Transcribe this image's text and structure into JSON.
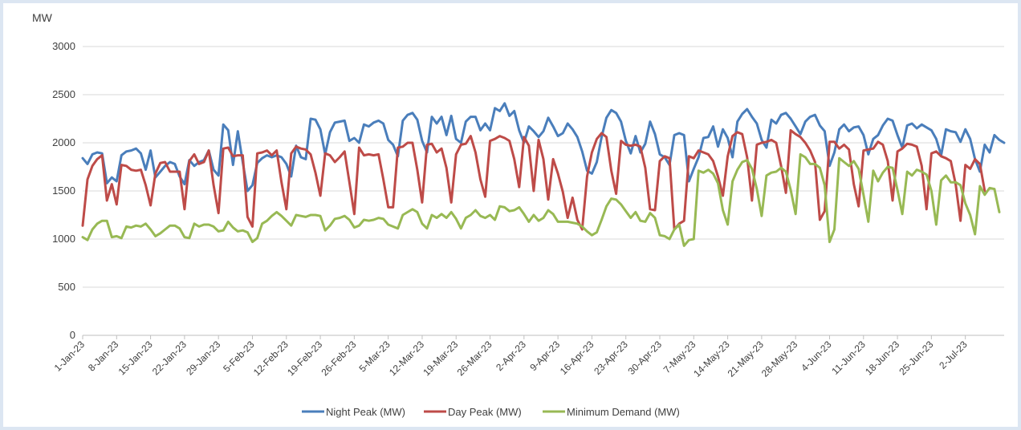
{
  "chart_data": {
    "type": "line",
    "ylabel": "MW",
    "ylim": [
      0,
      3000
    ],
    "yticks": [
      0,
      500,
      1000,
      1500,
      2000,
      2500,
      3000
    ],
    "x_start": "1-Jan-23",
    "x_tick_labels": [
      "1-Jan-23",
      "8-Jan-23",
      "15-Jan-23",
      "22-Jan-23",
      "29-Jan-23",
      "5-Feb-23",
      "12-Feb-23",
      "19-Feb-23",
      "26-Feb-23",
      "5-Mar-23",
      "12-Mar-23",
      "19-Mar-23",
      "26-Mar-23",
      "2-Apr-23",
      "9-Apr-23",
      "16-Apr-23",
      "23-Apr-23",
      "30-Apr-23",
      "7-May-23",
      "14-May-23",
      "21-May-23",
      "28-May-23",
      "4-Jun-23",
      "11-Jun-23",
      "18-Jun-23",
      "25-Jun-23",
      "2-Jul-23"
    ],
    "legend_position": "bottom",
    "grid": true,
    "series": [
      {
        "name": "Night Peak (MW)",
        "color": "#4a7ebb",
        "values": [
          1840,
          1780,
          1880,
          1900,
          1890,
          1580,
          1640,
          1600,
          1870,
          1910,
          1920,
          1940,
          1890,
          1720,
          1920,
          1640,
          1700,
          1760,
          1800,
          1780,
          1650,
          1570,
          1820,
          1760,
          1800,
          1820,
          1920,
          1720,
          1660,
          2190,
          2130,
          1770,
          2120,
          1800,
          1500,
          1560,
          1790,
          1840,
          1870,
          1850,
          1870,
          1850,
          1780,
          1650,
          1970,
          1850,
          1830,
          2250,
          2240,
          2140,
          1880,
          2110,
          2210,
          2220,
          2230,
          2020,
          2050,
          2000,
          2190,
          2170,
          2210,
          2230,
          2200,
          2030,
          1980,
          1860,
          2230,
          2290,
          2310,
          2240,
          2020,
          1900,
          2270,
          2200,
          2270,
          2080,
          2280,
          2040,
          2000,
          2220,
          2270,
          2270,
          2130,
          2200,
          2130,
          2360,
          2330,
          2410,
          2280,
          2330,
          2130,
          2000,
          2170,
          2120,
          2060,
          2120,
          2260,
          2170,
          2070,
          2100,
          2200,
          2140,
          2060,
          1910,
          1710,
          1680,
          1800,
          2060,
          2260,
          2340,
          2310,
          2220,
          2020,
          1890,
          2070,
          1900,
          1990,
          2220,
          2090,
          1880,
          1850,
          1770,
          2080,
          2100,
          2080,
          1600,
          1730,
          1850,
          2050,
          2060,
          2170,
          1960,
          2140,
          2050,
          1850,
          2220,
          2300,
          2350,
          2270,
          2200,
          2030,
          1950,
          2240,
          2200,
          2290,
          2310,
          2250,
          2170,
          2090,
          2220,
          2270,
          2290,
          2180,
          2120,
          1760,
          1900,
          2140,
          2190,
          2120,
          2160,
          2170,
          2080,
          1880,
          2040,
          2080,
          2180,
          2250,
          2230,
          2080,
          1950,
          2180,
          2200,
          2150,
          2190,
          2160,
          2130,
          2040,
          1870,
          2140,
          2120,
          2110,
          2010,
          2140,
          2040,
          1830,
          1700,
          1980,
          1900,
          2080,
          2030,
          2000
        ]
      },
      {
        "name": "Day Peak (MW)",
        "color": "#be4b48",
        "values": [
          1140,
          1620,
          1760,
          1830,
          1870,
          1400,
          1570,
          1360,
          1770,
          1760,
          1720,
          1710,
          1720,
          1560,
          1350,
          1680,
          1790,
          1800,
          1700,
          1700,
          1700,
          1310,
          1810,
          1880,
          1780,
          1800,
          1920,
          1560,
          1270,
          1940,
          1950,
          1860,
          1870,
          1870,
          1230,
          1130,
          1890,
          1900,
          1920,
          1870,
          1920,
          1590,
          1310,
          1890,
          1960,
          1940,
          1930,
          1880,
          1690,
          1450,
          1890,
          1870,
          1800,
          1850,
          1910,
          1590,
          1260,
          1950,
          1870,
          1880,
          1870,
          1880,
          1620,
          1330,
          1330,
          1950,
          1960,
          2000,
          2000,
          1720,
          1380,
          1980,
          1990,
          1900,
          1940,
          1740,
          1380,
          1880,
          1980,
          1990,
          2070,
          1900,
          1620,
          1440,
          2020,
          2040,
          2070,
          2050,
          2020,
          1830,
          1540,
          2060,
          1970,
          1500,
          2030,
          1830,
          1410,
          1830,
          1680,
          1490,
          1220,
          1430,
          1200,
          1100,
          1650,
          1900,
          2040,
          2100,
          2060,
          1710,
          1470,
          2020,
          1980,
          1970,
          1980,
          1960,
          1740,
          1310,
          1300,
          1810,
          1860,
          1840,
          1100,
          1160,
          1190,
          1860,
          1840,
          1920,
          1900,
          1880,
          1810,
          1650,
          1450,
          1860,
          2070,
          2110,
          2090,
          1850,
          1400,
          1980,
          2000,
          2010,
          2030,
          2000,
          1760,
          1480,
          2130,
          2090,
          2060,
          2000,
          1920,
          1800,
          1200,
          1290,
          2010,
          2010,
          1940,
          1980,
          1930,
          1570,
          1340,
          1920,
          1930,
          1940,
          2010,
          1980,
          1810,
          1400,
          1910,
          1940,
          1990,
          1980,
          1960,
          1760,
          1310,
          1890,
          1910,
          1860,
          1840,
          1810,
          1570,
          1190,
          1770,
          1730,
          1830,
          1780,
          1500
        ]
      },
      {
        "name": "Minimum Demand (MW)",
        "color": "#98b954",
        "values": [
          1020,
          990,
          1100,
          1160,
          1190,
          1190,
          1020,
          1030,
          1010,
          1130,
          1120,
          1140,
          1130,
          1160,
          1100,
          1030,
          1060,
          1100,
          1140,
          1140,
          1110,
          1020,
          1010,
          1160,
          1130,
          1150,
          1150,
          1130,
          1080,
          1090,
          1180,
          1120,
          1080,
          1090,
          1070,
          970,
          1010,
          1160,
          1190,
          1240,
          1280,
          1240,
          1190,
          1140,
          1250,
          1240,
          1230,
          1250,
          1250,
          1240,
          1090,
          1140,
          1210,
          1220,
          1240,
          1200,
          1120,
          1140,
          1200,
          1190,
          1200,
          1220,
          1210,
          1150,
          1130,
          1110,
          1250,
          1280,
          1310,
          1280,
          1160,
          1110,
          1250,
          1220,
          1260,
          1220,
          1280,
          1210,
          1110,
          1220,
          1250,
          1300,
          1240,
          1220,
          1250,
          1200,
          1340,
          1330,
          1290,
          1300,
          1330,
          1260,
          1180,
          1250,
          1190,
          1220,
          1300,
          1260,
          1180,
          1180,
          1180,
          1170,
          1160,
          1130,
          1080,
          1040,
          1070,
          1200,
          1340,
          1420,
          1410,
          1360,
          1290,
          1220,
          1280,
          1190,
          1180,
          1270,
          1220,
          1040,
          1030,
          1000,
          1100,
          1150,
          930,
          990,
          1000,
          1710,
          1690,
          1720,
          1680,
          1580,
          1300,
          1150,
          1600,
          1720,
          1800,
          1820,
          1730,
          1520,
          1240,
          1660,
          1690,
          1700,
          1740,
          1700,
          1510,
          1260,
          1880,
          1850,
          1780,
          1780,
          1740,
          1560,
          970,
          1100,
          1840,
          1800,
          1760,
          1810,
          1730,
          1460,
          1180,
          1710,
          1600,
          1690,
          1750,
          1740,
          1510,
          1260,
          1700,
          1660,
          1720,
          1700,
          1670,
          1500,
          1150,
          1610,
          1660,
          1590,
          1590,
          1560,
          1370,
          1250,
          1050,
          1550,
          1460,
          1530,
          1520,
          1280
        ]
      }
    ]
  }
}
